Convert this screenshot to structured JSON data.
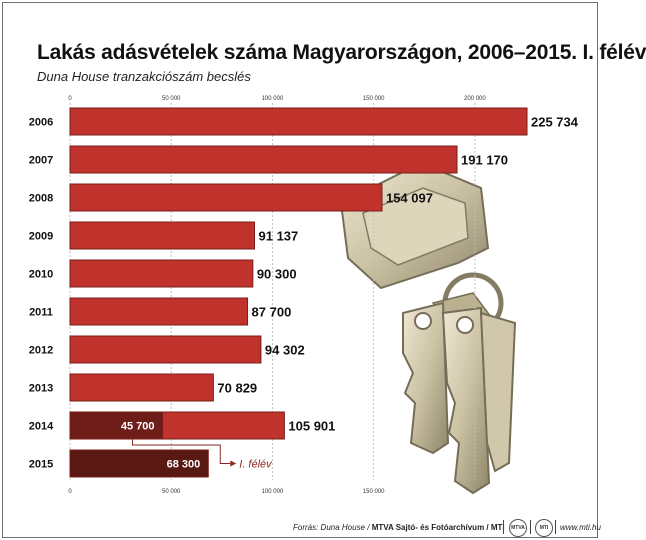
{
  "title": "Lakás adásvételek száma Magyarországon, 2006–2015. I. félév",
  "subtitle": "Duna House tranzakciószám becslés",
  "chart_data": {
    "type": "bar",
    "orientation": "horizontal",
    "categories": [
      "2006",
      "2007",
      "2008",
      "2009",
      "2010",
      "2011",
      "2012",
      "2013",
      "2014",
      "2015"
    ],
    "values": [
      225734,
      191170,
      154097,
      91137,
      90300,
      87700,
      94302,
      70829,
      105901,
      68300
    ],
    "value_labels": [
      "225 734",
      "191 170",
      "154 097",
      "91 137",
      "90 300",
      "87 700",
      "94 302",
      "70 829",
      "105 901",
      "68 300"
    ],
    "first_half": {
      "2014": 45700,
      "2015": 68300
    },
    "first_half_labels": {
      "2014": "45 700",
      "2015": "68 300"
    },
    "first_half_annotation": "I. félév",
    "xlim": [
      0,
      225734
    ],
    "ticks": [
      0,
      50000,
      100000,
      150000,
      200000
    ],
    "tick_labels": [
      "0",
      "50 000",
      "100 000",
      "150 000",
      "200 000"
    ],
    "bottom_ticks": [
      0,
      50000,
      100000,
      150000
    ],
    "bottom_tick_labels": [
      "0",
      "50 000",
      "100 000",
      "150 000"
    ],
    "grid": true,
    "colors": {
      "bar": "#c0332d",
      "bar_border": "#7a1d18",
      "first_half": "#6e1d19",
      "first_half_2015": "#5a1813",
      "grid": "#bfbfbf"
    }
  },
  "footer": {
    "source": "Forrás: Duna House /",
    "agency": "MTVA Sajtó- és Fotóarchívum / MTI",
    "logo1": "MTVA",
    "logo2": "MTI",
    "website": "www.mti.hu"
  }
}
